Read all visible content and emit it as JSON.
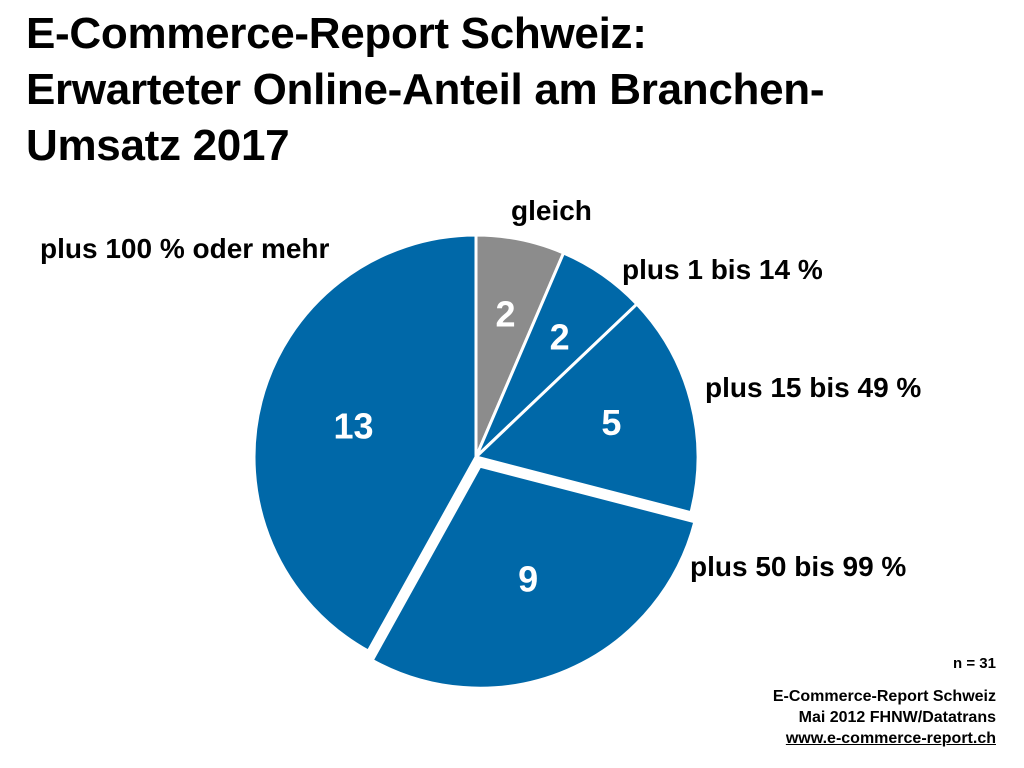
{
  "title_lines": [
    "E-Commerce-Report Schweiz:",
    "Erwarteter Online-Anteil am Branchen-",
    "Umsatz 2017"
  ],
  "chart_data": {
    "type": "pie",
    "categories": [
      "gleich",
      "plus 1 bis 14 %",
      "plus 15 bis 49 %",
      "plus 50 bis 99 %",
      "plus 100 % oder mehr"
    ],
    "values": [
      2,
      2,
      5,
      9,
      13
    ],
    "colors": [
      "#8c8c8c",
      "#0068a8",
      "#0068a8",
      "#0068a8",
      "#0068a8"
    ],
    "exploded": [
      "plus 50 bis 99 %"
    ]
  },
  "footer": {
    "sample_size": "n = 31",
    "source_line1": "E-Commerce-Report Schweiz",
    "source_line2": "Mai 2012 FHNW/Datatrans",
    "source_url": "www.e-commerce-report.ch"
  }
}
